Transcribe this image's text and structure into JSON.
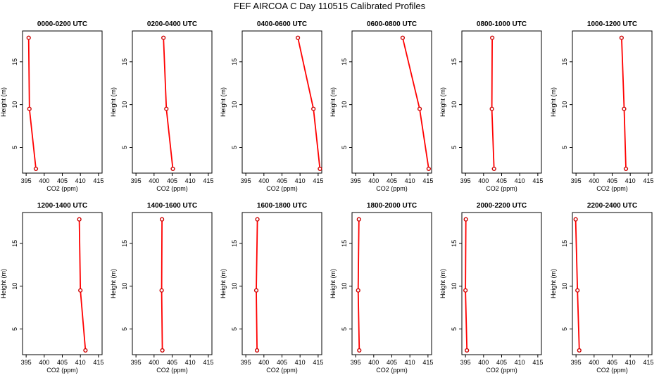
{
  "figure": {
    "title": "FEF AIRCOA C  Day 110515  Calibrated Profiles"
  },
  "chart_data": {
    "type": "line",
    "line_color": "#ff0000",
    "marker_color": "#cc0000",
    "xlabel": "CO2 (ppm)",
    "ylabel": "Height (m)",
    "xlim": [
      394,
      416
    ],
    "ylim": [
      2,
      18.6
    ],
    "xticks": [
      395,
      400,
      405,
      410,
      415
    ],
    "yticks": [
      5,
      10,
      15
    ],
    "heights": [
      2.5,
      9.5,
      17.8
    ],
    "panels": [
      {
        "title": "0000-0200 UTC",
        "values": [
          397.7,
          395.9,
          395.7
        ]
      },
      {
        "title": "0200-0400 UTC",
        "values": [
          405.2,
          403.4,
          402.6
        ]
      },
      {
        "title": "0400-0600 UTC",
        "values": [
          415.5,
          413.7,
          409.4
        ]
      },
      {
        "title": "0600-0800 UTC",
        "values": [
          415.2,
          412.7,
          408.0
        ]
      },
      {
        "title": "0800-1000 UTC",
        "values": [
          402.9,
          402.3,
          402.4
        ]
      },
      {
        "title": "1000-1200 UTC",
        "values": [
          408.8,
          408.3,
          407.6
        ]
      },
      {
        "title": "1200-1400 UTC",
        "values": [
          411.4,
          410.0,
          409.7
        ]
      },
      {
        "title": "1400-1600 UTC",
        "values": [
          402.3,
          402.1,
          402.2
        ]
      },
      {
        "title": "1600-1800 UTC",
        "values": [
          398.1,
          397.9,
          398.2
        ]
      },
      {
        "title": "1800-2000 UTC",
        "values": [
          396.0,
          395.7,
          395.9
        ]
      },
      {
        "title": "2000-2200 UTC",
        "values": [
          395.4,
          395.0,
          395.1
        ]
      },
      {
        "title": "2200-2400 UTC",
        "values": [
          395.9,
          395.4,
          394.9
        ]
      }
    ]
  }
}
